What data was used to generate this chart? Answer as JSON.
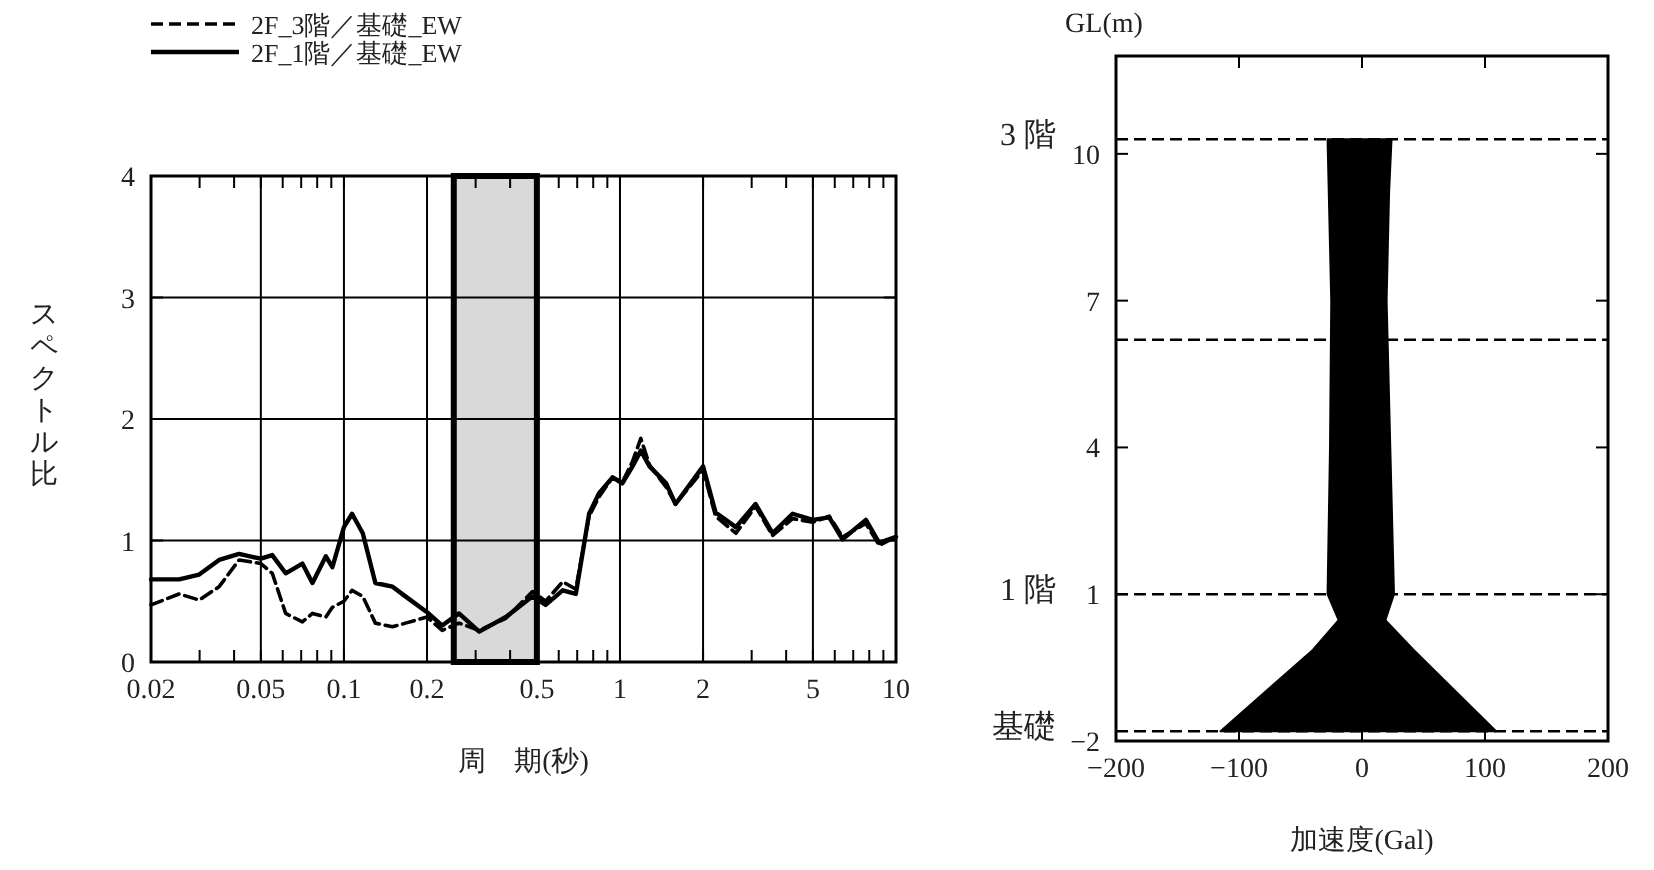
{
  "chart_data": [
    {
      "type": "line",
      "log": "x",
      "grid": true,
      "legend": "top left",
      "xlabel": "周　期(秒)",
      "ylabel": "スペクトル比",
      "x": [
        0.02,
        0.0253,
        0.0299,
        0.0353,
        0.0417,
        0.05,
        0.055,
        0.0615,
        0.0707,
        0.0769,
        0.086,
        0.0908,
        0.1,
        0.107,
        0.117,
        0.13,
        0.15,
        0.167,
        0.2,
        0.227,
        0.261,
        0.309,
        0.386,
        0.482,
        0.538,
        0.62,
        0.692,
        0.773,
        0.84,
        0.94,
        1.02,
        1.11,
        1.19,
        1.28,
        1.47,
        1.59,
        2,
        2.22,
        2.63,
        3.1,
        3.57,
        4.22,
        5,
        5.73,
        6.4,
        7.78,
        8.69,
        10
      ],
      "series": [
        {
          "name": "2F_3階／基礎_EW",
          "color": "#000000",
          "line_style": "dashed",
          "values": [
            0.47,
            0.56,
            0.51,
            0.62,
            0.84,
            0.81,
            0.73,
            0.4,
            0.33,
            0.4,
            0.37,
            0.45,
            0.5,
            0.59,
            0.54,
            0.32,
            0.29,
            0.32,
            0.37,
            0.26,
            0.32,
            0.26,
            0.36,
            0.58,
            0.5,
            0.66,
            0.6,
            1.2,
            1.36,
            1.52,
            1.48,
            1.65,
            1.84,
            1.62,
            1.44,
            1.3,
            1.58,
            1.2,
            1.06,
            1.28,
            1.04,
            1.18,
            1.15,
            1.2,
            1.03,
            1.14,
            0.96,
            1.03
          ]
        },
        {
          "name": "2F_1階／基礎_EW",
          "color": "#000000",
          "line_style": "solid",
          "values": [
            0.68,
            0.68,
            0.72,
            0.84,
            0.89,
            0.85,
            0.88,
            0.73,
            0.81,
            0.65,
            0.87,
            0.78,
            1.11,
            1.22,
            1.06,
            0.65,
            0.62,
            0.54,
            0.41,
            0.3,
            0.4,
            0.25,
            0.37,
            0.54,
            0.47,
            0.59,
            0.56,
            1.22,
            1.39,
            1.52,
            1.47,
            1.61,
            1.74,
            1.61,
            1.47,
            1.3,
            1.61,
            1.23,
            1.11,
            1.3,
            1.06,
            1.22,
            1.17,
            1.19,
            1.01,
            1.17,
            0.98,
            1.03
          ]
        }
      ],
      "xlim": [
        0.02,
        10
      ],
      "ylim": [
        0,
        4
      ],
      "xticks": [
        0.02,
        {
          "value": 0.03,
          "label": null
        },
        {
          "value": 0.04,
          "label": null
        },
        0.05,
        {
          "value": 0.06,
          "label": null
        },
        {
          "value": 0.07,
          "label": null
        },
        {
          "value": 0.08,
          "label": null
        },
        {
          "value": 0.09,
          "label": null
        },
        0.1,
        0.2,
        {
          "value": 0.3,
          "label": null
        },
        {
          "value": 0.4,
          "label": null
        },
        0.5,
        {
          "value": 0.6,
          "label": null
        },
        {
          "value": 0.7,
          "label": null
        },
        {
          "value": 0.8,
          "label": null
        },
        {
          "value": 0.9,
          "label": null
        },
        1,
        2,
        {
          "value": 3,
          "label": null
        },
        {
          "value": 4,
          "label": null
        },
        5,
        {
          "value": 6,
          "label": null
        },
        {
          "value": 7,
          "label": null
        },
        {
          "value": 8,
          "label": null
        },
        {
          "value": 9,
          "label": null
        },
        10
      ],
      "yticks": [
        0,
        1,
        2,
        3,
        4
      ],
      "bands": [
        {
          "axis": "x",
          "from": 0.25,
          "to": 0.5,
          "color": "#d9d9d9"
        }
      ]
    },
    {
      "type": "area",
      "grid": false,
      "xlabel": "加速度(Gal)",
      "ylabel": "GL(m)",
      "series": [
        {
          "color": "#000000",
          "x": [
            -28,
            -27,
            -25,
            -26,
            -28,
            -19,
            -40,
            -115,
            109,
            42,
            19,
            26,
            23,
            20,
            22,
            24
          ],
          "values": [
            10.3,
            9.2,
            7,
            4,
            1,
            0.47,
            -0.14,
            -1.8,
            -1.8,
            -0.14,
            0.47,
            1,
            4,
            7,
            9.2,
            10.3
          ]
        }
      ],
      "xlim": [
        -200,
        200
      ],
      "ylim": [
        -2,
        12
      ],
      "xticks": [
        -200,
        -100,
        0,
        100,
        200
      ],
      "yticks": [
        -2,
        1,
        4,
        7,
        10
      ],
      "ref_lines": [
        {
          "axis": "y",
          "value": 10.3,
          "label": "3 階",
          "line_style": "dashed"
        },
        {
          "axis": "y",
          "value": 6.2,
          "line_style": "dashed"
        },
        {
          "axis": "y",
          "value": 1,
          "label": "1 階",
          "line_style": "dashed"
        },
        {
          "axis": "y",
          "value": -1.8,
          "label": "基礎",
          "line_style": "dashed"
        }
      ]
    }
  ]
}
